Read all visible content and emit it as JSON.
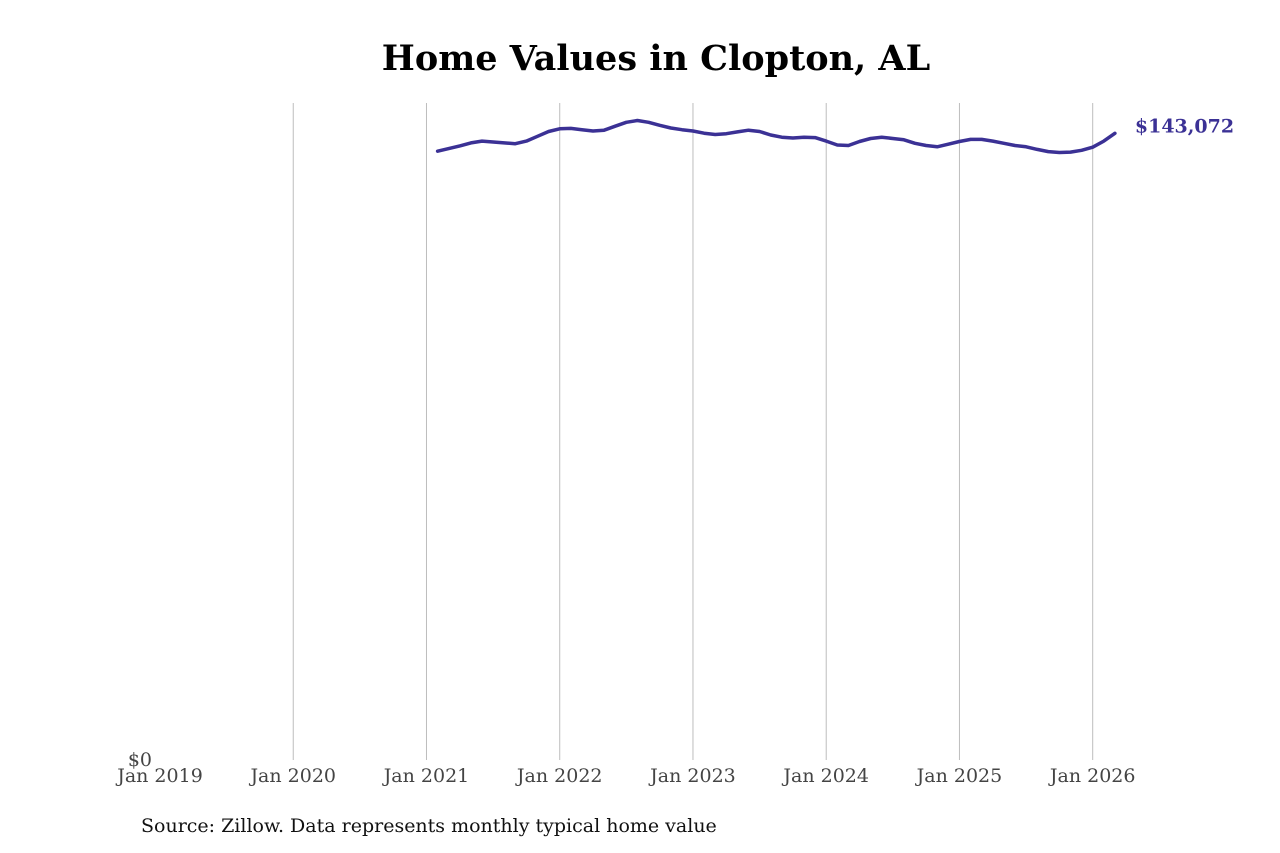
{
  "chart_data": {
    "type": "line",
    "title": "Home Values in Clopton, AL",
    "xlabel": "",
    "ylabel": "",
    "x_tick_labels": [
      "Jan 2019",
      "Jan 2020",
      "Jan 2021",
      "Jan 2022",
      "Jan 2023",
      "Jan 2024",
      "Jan 2025",
      "Jan 2026"
    ],
    "y_tick_labels": [
      "$0"
    ],
    "xlim": [
      "2019-01",
      "2026-04"
    ],
    "ylim": [
      0,
      150000
    ],
    "grid": "vertical",
    "legend": "none",
    "line_color": "#3b3195",
    "grid_color": "#bdbdbd",
    "end_label": "$143,072",
    "series": [
      {
        "x": [
          "2021-02",
          "2021-03",
          "2021-04",
          "2021-05",
          "2021-06",
          "2021-07",
          "2021-08",
          "2021-09",
          "2021-10",
          "2021-11",
          "2021-12",
          "2022-01",
          "2022-02",
          "2022-03",
          "2022-04",
          "2022-05",
          "2022-06",
          "2022-07",
          "2022-08",
          "2022-09",
          "2022-10",
          "2022-11",
          "2022-12",
          "2023-01",
          "2023-02",
          "2023-03",
          "2023-04",
          "2023-05",
          "2023-06",
          "2023-07",
          "2023-08",
          "2023-09",
          "2023-10",
          "2023-11",
          "2023-12",
          "2024-01",
          "2024-02",
          "2024-03",
          "2024-04",
          "2024-05",
          "2024-06",
          "2024-07",
          "2024-08",
          "2024-09",
          "2024-10",
          "2024-11",
          "2024-12",
          "2025-01",
          "2025-02",
          "2025-03",
          "2025-04",
          "2025-05",
          "2025-06",
          "2025-07",
          "2025-08",
          "2025-09",
          "2025-10",
          "2025-11",
          "2025-12",
          "2026-01",
          "2026-02",
          "2026-03"
        ],
        "values": [
          139000,
          139600,
          140200,
          140900,
          141300,
          141100,
          140900,
          140700,
          141300,
          142400,
          143500,
          144100,
          144200,
          143900,
          143600,
          143800,
          144700,
          145600,
          146000,
          145600,
          144900,
          144300,
          143900,
          143600,
          143100,
          142800,
          143000,
          143400,
          143800,
          143500,
          142700,
          142200,
          142000,
          142200,
          142100,
          141300,
          140400,
          140300,
          141200,
          141900,
          142200,
          141900,
          141600,
          140800,
          140300,
          140000,
          140600,
          141200,
          141700,
          141700,
          141300,
          140800,
          140300,
          140000,
          139400,
          138900,
          138700,
          138800,
          139200,
          139900,
          141300,
          143072
        ]
      }
    ]
  },
  "source": "Source: Zillow. Data represents monthly typical home value"
}
